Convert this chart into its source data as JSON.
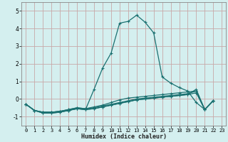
{
  "title": "",
  "xlabel": "Humidex (Indice chaleur)",
  "ylabel": "",
  "bg_color": "#d4efef",
  "plot_bg_color": "#d4efef",
  "grid_color": "#c8a8a8",
  "line_color": "#1a7070",
  "xlim": [
    -0.5,
    23.5
  ],
  "ylim": [
    -1.5,
    5.5
  ],
  "yticks": [
    -1,
    0,
    1,
    2,
    3,
    4,
    5
  ],
  "xticks": [
    0,
    1,
    2,
    3,
    4,
    5,
    6,
    7,
    8,
    9,
    10,
    11,
    12,
    13,
    14,
    15,
    16,
    17,
    18,
    19,
    20,
    21,
    22,
    23
  ],
  "lines": [
    {
      "x": [
        0,
        1,
        2,
        3,
        4,
        5,
        6,
        7,
        8,
        9,
        10,
        11,
        12,
        13,
        14,
        15,
        16,
        17,
        18,
        19,
        20,
        21,
        22
      ],
      "y": [
        -0.3,
        -0.65,
        -0.75,
        -0.75,
        -0.7,
        -0.65,
        -0.55,
        -0.6,
        0.55,
        1.75,
        2.6,
        4.3,
        4.4,
        4.75,
        4.35,
        3.75,
        1.25,
        0.9,
        0.65,
        0.45,
        -0.2,
        -0.6,
        -0.1
      ]
    },
    {
      "x": [
        0,
        1,
        2,
        3,
        4,
        5,
        6,
        7,
        8,
        9,
        10,
        11,
        12,
        13,
        14,
        15,
        16,
        17,
        18,
        19,
        20,
        21,
        22
      ],
      "y": [
        -0.3,
        -0.65,
        -0.75,
        -0.75,
        -0.7,
        -0.6,
        -0.5,
        -0.55,
        -0.45,
        -0.35,
        -0.2,
        -0.05,
        0.05,
        0.1,
        0.15,
        0.2,
        0.25,
        0.3,
        0.35,
        0.4,
        0.45,
        -0.6,
        -0.1
      ]
    },
    {
      "x": [
        0,
        1,
        2,
        3,
        4,
        5,
        6,
        7,
        8,
        9,
        10,
        11,
        12,
        13,
        14,
        15,
        16,
        17,
        18,
        19,
        20,
        21,
        22
      ],
      "y": [
        -0.3,
        -0.65,
        -0.75,
        -0.75,
        -0.7,
        -0.6,
        -0.5,
        -0.55,
        -0.5,
        -0.4,
        -0.3,
        -0.2,
        -0.1,
        0.0,
        0.05,
        0.1,
        0.15,
        0.2,
        0.25,
        0.3,
        0.45,
        -0.6,
        -0.1
      ]
    },
    {
      "x": [
        0,
        1,
        2,
        3,
        4,
        5,
        6,
        7,
        8,
        9,
        10,
        11,
        12,
        13,
        14,
        15,
        16,
        17,
        18,
        19,
        20,
        21,
        22
      ],
      "y": [
        -0.3,
        -0.65,
        -0.8,
        -0.8,
        -0.75,
        -0.65,
        -0.55,
        -0.6,
        -0.55,
        -0.45,
        -0.35,
        -0.25,
        -0.15,
        -0.05,
        0.0,
        0.05,
        0.1,
        0.15,
        0.2,
        0.25,
        0.35,
        -0.6,
        -0.1
      ]
    },
    {
      "x": [
        0,
        1,
        2,
        3,
        4,
        5,
        6,
        7,
        8,
        9,
        10,
        11,
        12,
        13,
        14,
        15,
        16,
        17,
        18,
        19,
        20,
        21,
        22
      ],
      "y": [
        -0.3,
        -0.65,
        -0.8,
        -0.8,
        -0.75,
        -0.65,
        -0.55,
        -0.6,
        -0.55,
        -0.45,
        -0.35,
        -0.25,
        -0.15,
        -0.05,
        0.0,
        0.05,
        0.1,
        0.15,
        0.2,
        0.25,
        0.55,
        -0.6,
        -0.1
      ]
    }
  ]
}
